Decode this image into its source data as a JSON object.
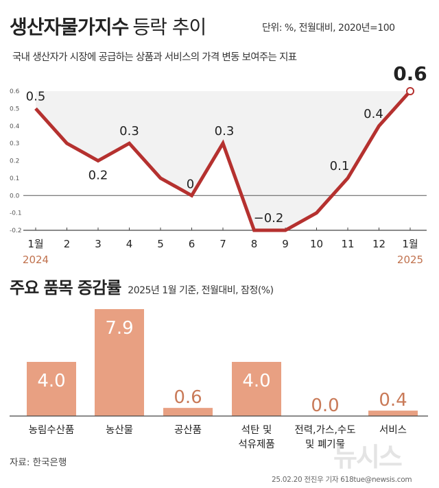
{
  "header": {
    "title": "생산자물가지수",
    "title_suffix": "등락 추이",
    "unit": "단위: %, 전월대비, 2020년=100",
    "subtitle": "국내 생산자가 시장에 공급하는 상품과 서비스의 가격 변동 보여주는 지표"
  },
  "section2": {
    "title": "주요 품목 증감률",
    "note": "2025년 1월 기준, 전월대비, 잠정(%)"
  },
  "footer": {
    "source": "자료: 한국은행",
    "credit": "25.02.20 전진우 기자 618tue@newsis.com",
    "watermark": "뉴시스"
  },
  "colors": {
    "line": "#b5312f",
    "bar": "#e8a082",
    "value_label": "#c97a58",
    "year_label": "#c0714d",
    "area": "#f2f2f2"
  },
  "chart_data": [
    {
      "type": "line",
      "categories": [
        "1월",
        "2",
        "3",
        "4",
        "5",
        "6",
        "7",
        "8",
        "9",
        "10",
        "11",
        "12",
        "1월"
      ],
      "year_labels": [
        {
          "index": 0,
          "text": "2024"
        },
        {
          "index": 12,
          "text": "2025"
        }
      ],
      "values": [
        0.5,
        0.3,
        0.2,
        0.3,
        0.1,
        0.0,
        0.3,
        -0.2,
        -0.2,
        -0.1,
        0.1,
        0.4,
        0.6
      ],
      "data_labels": [
        {
          "index": 0,
          "text": "0.5"
        },
        {
          "index": 2,
          "text": "0.2"
        },
        {
          "index": 3,
          "text": "0.3"
        },
        {
          "index": 5,
          "text": "0"
        },
        {
          "index": 6,
          "text": "0.3"
        },
        {
          "index": 7,
          "text": "−0.2"
        },
        {
          "index": 10,
          "text": "0.1"
        },
        {
          "index": 11,
          "text": "0.4"
        },
        {
          "index": 12,
          "text": "0.6"
        }
      ],
      "y_ticks": [
        "0.6",
        "0.5",
        "0.4",
        "0.3",
        "0.2",
        "0.1",
        "0.0",
        "-0.1",
        "-0.2"
      ],
      "ylim": [
        -0.2,
        0.6
      ],
      "grid": false
    },
    {
      "type": "bar",
      "categories": [
        [
          "농림수산품"
        ],
        [
          "농산물"
        ],
        [
          "공산품"
        ],
        [
          "석탄 및",
          "석유제품"
        ],
        [
          "전력,가스,수도",
          "및 폐기물"
        ],
        [
          "서비스"
        ]
      ],
      "values": [
        4.0,
        7.9,
        0.6,
        4.0,
        0.0,
        0.4
      ],
      "value_labels": [
        "4.0",
        "7.9",
        "0.6",
        "4.0",
        "0.0",
        "0.4"
      ],
      "ylim": [
        0,
        7.9
      ]
    }
  ]
}
